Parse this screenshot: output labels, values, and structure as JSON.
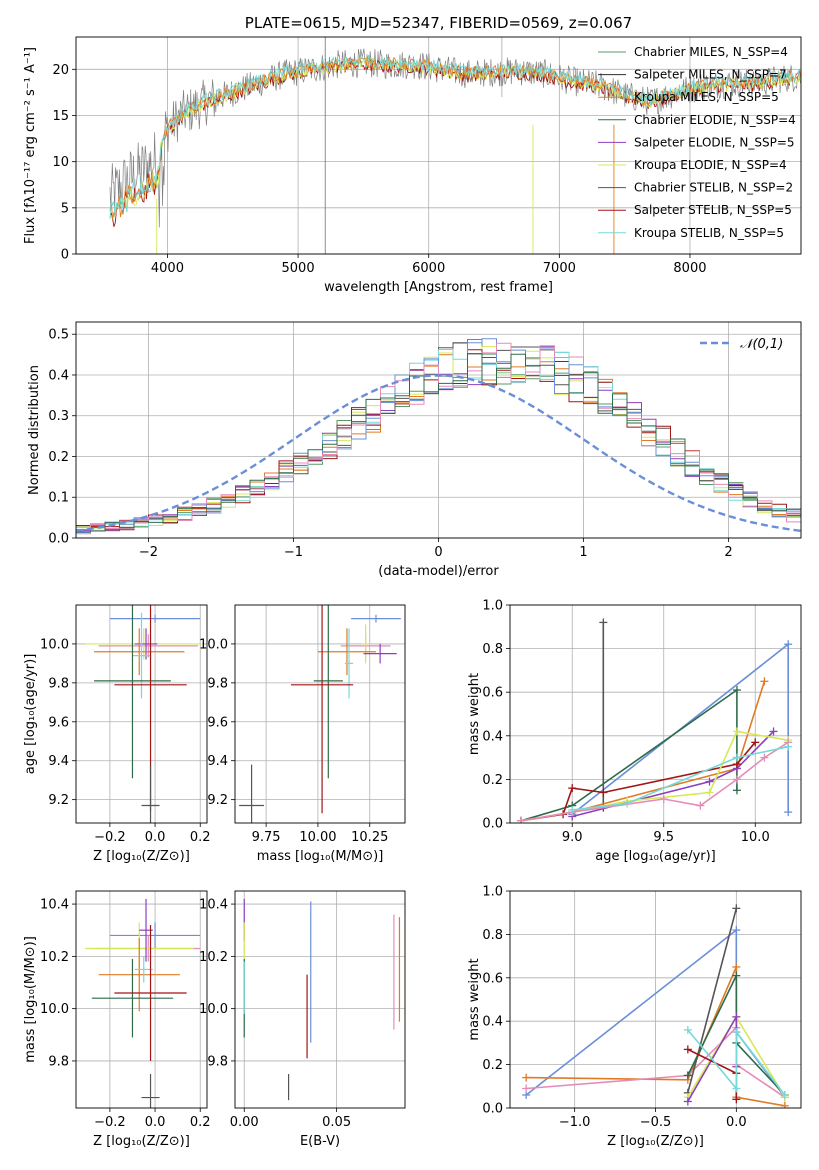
{
  "colors": {
    "grid": "#b0b0b0",
    "chabrier_miles": "#5a9a68",
    "salpeter_miles": "#2b2b2b",
    "kroupa_miles": "#e07b25",
    "chabrier_elodie": "#2f6b4a",
    "salpeter_elodie": "#8e3fbf",
    "kroupa_elodie": "#d6e85a",
    "chabrier_stelib": "#555555",
    "salpeter_stelib": "#a31515",
    "kroupa_stelib": "#77d8d8",
    "blue": "#6a8fd8",
    "pink": "#e58bb8"
  },
  "chart_data": [
    {
      "type": "line",
      "title": "PLATE=0615, MJD=52347, FIBERID=0569, z=0.067",
      "xlabel": "wavelength [Angstrom, rest frame]",
      "ylabel": "Flux [fλ10⁻¹⁷ erg cm⁻² s⁻¹ A⁻¹]",
      "xlim": [
        3300,
        8850
      ],
      "ylim": [
        0,
        23.5
      ],
      "xticks": [
        "4000",
        "5000",
        "6000",
        "7000",
        "8000"
      ],
      "yticks": [
        "0",
        "5",
        "10",
        "15",
        "20"
      ],
      "legend_position": "top-right",
      "legend": [
        "Chabrier MILES, N_SSP=4",
        "Salpeter MILES, N_SSP=7",
        "Kroupa MILES, N_SSP=5",
        "Chabrier ELODIE, N_SSP=4",
        "Salpeter ELODIE, N_SSP=5",
        "Kroupa ELODIE, N_SSP=4",
        "Chabrier STELIB, N_SSP=2",
        "Salpeter STELIB, N_SSP=5",
        "Kroupa STELIB, N_SSP=5"
      ],
      "continuum": {
        "x": [
          3550,
          3700,
          3900,
          4000,
          4100,
          4300,
          4500,
          4700,
          4900,
          5100,
          5300,
          5500,
          5700,
          5900,
          6100,
          6300,
          6500,
          6700,
          6900,
          7100,
          7300,
          7500,
          7700,
          7900,
          8100,
          8300,
          8500,
          8700,
          8850
        ],
        "y": [
          6,
          8,
          10,
          13.5,
          15,
          16.5,
          17.5,
          18.5,
          19.5,
          20,
          20.5,
          20.7,
          20.5,
          20.5,
          20,
          19.5,
          19.7,
          19.8,
          19.5,
          18.7,
          18.3,
          17.2,
          16.5,
          17.5,
          18.2,
          18.5,
          18.5,
          19,
          19.2
        ]
      }
    },
    {
      "type": "histogram",
      "xlabel": "(data-model)/error",
      "ylabel": "Normed distribution",
      "xlim": [
        -2.5,
        2.5
      ],
      "ylim": [
        0,
        0.53
      ],
      "xticks": [
        "−2",
        "−1",
        "0",
        "1",
        "2"
      ],
      "yticks": [
        "0.0",
        "0.1",
        "0.2",
        "0.3",
        "0.4",
        "0.5"
      ],
      "legend_position": "top-right",
      "reference_label": "𝒩(0,1)",
      "bin_width": 0.1,
      "base": [
        0.02,
        0.023,
        0.026,
        0.031,
        0.036,
        0.042,
        0.05,
        0.059,
        0.069,
        0.08,
        0.093,
        0.107,
        0.123,
        0.141,
        0.16,
        0.181,
        0.203,
        0.227,
        0.252,
        0.277,
        0.303,
        0.328,
        0.352,
        0.374,
        0.394,
        0.411,
        0.424,
        0.433,
        0.438,
        0.44,
        0.437,
        0.431,
        0.42,
        0.406,
        0.388,
        0.367,
        0.344,
        0.318,
        0.291,
        0.264,
        0.236,
        0.209,
        0.183,
        0.158,
        0.135,
        0.114,
        0.096,
        0.08,
        0.066,
        0.055
      ]
    },
    {
      "type": "scatter",
      "xlabel": "Z [log₁₀(Z/Z⊙)]",
      "ylabel": "age  [log₁₀(age/yr)]",
      "xlim": [
        -0.35,
        0.23
      ],
      "ylim": [
        9.08,
        10.2
      ],
      "xticks": [
        "−0.2",
        "0.0",
        "0.2"
      ],
      "yticks": [
        "9.2",
        "9.4",
        "9.6",
        "9.8",
        "10.0"
      ],
      "points": [
        {
          "x": 0.0,
          "y": 10.13,
          "xerr": 0.2,
          "yerr": 0.02,
          "color": "blue"
        },
        {
          "x": -0.03,
          "y": 9.99,
          "xerr": 0.22,
          "yerr": 0.06,
          "color": "pink"
        },
        {
          "x": -0.05,
          "y": 10.0,
          "xerr": 0.26,
          "yerr": 0.08,
          "color": "kroupa_elodie"
        },
        {
          "x": -0.04,
          "y": 10.0,
          "xerr": 0.05,
          "yerr": 0.08,
          "color": "salpeter_elodie"
        },
        {
          "x": -0.07,
          "y": 9.96,
          "xerr": 0.2,
          "yerr": 0.12,
          "color": "kroupa_miles"
        },
        {
          "x": -0.06,
          "y": 9.94,
          "xerr": 0.04,
          "yerr": 0.22,
          "color": "kroupa_stelib"
        },
        {
          "x": -0.1,
          "y": 9.81,
          "xerr": 0.17,
          "yerr": 0.5,
          "color": "chabrier_elodie"
        },
        {
          "x": -0.02,
          "y": 9.79,
          "xerr": 0.16,
          "yerr": 0.65,
          "color": "salpeter_stelib"
        },
        {
          "x": -0.02,
          "y": 9.17,
          "xerr": 0.04,
          "yerr": 0.21,
          "color": "chabrier_stelib"
        }
      ]
    },
    {
      "type": "scatter",
      "xlabel": "mass [log₁₀(M/M⊙)]",
      "ylabel": "",
      "xlim": [
        9.6,
        10.42
      ],
      "ylim": [
        9.08,
        10.2
      ],
      "xticks": [
        "9.75",
        "10.00",
        "10.25"
      ],
      "yticks": [
        "9.2",
        "9.4",
        "9.6",
        "9.8",
        "10.0"
      ],
      "points": [
        {
          "x": 10.28,
          "y": 10.13,
          "xerr": 0.12,
          "yerr": 0.02,
          "color": "blue"
        },
        {
          "x": 10.23,
          "y": 9.99,
          "xerr": 0.12,
          "yerr": 0.06,
          "color": "pink"
        },
        {
          "x": 10.23,
          "y": 10.0,
          "xerr": 0.02,
          "yerr": 0.1,
          "color": "kroupa_elodie"
        },
        {
          "x": 10.3,
          "y": 9.95,
          "xerr": 0.08,
          "yerr": 0.05,
          "color": "salpeter_elodie"
        },
        {
          "x": 10.14,
          "y": 9.96,
          "xerr": 0.14,
          "yerr": 0.12,
          "color": "kroupa_miles"
        },
        {
          "x": 10.15,
          "y": 9.9,
          "xerr": 0.02,
          "yerr": 0.18,
          "color": "kroupa_stelib"
        },
        {
          "x": 10.05,
          "y": 9.81,
          "xerr": 0.07,
          "yerr": 0.5,
          "color": "chabrier_elodie"
        },
        {
          "x": 10.02,
          "y": 9.79,
          "xerr": 0.15,
          "yerr": 0.66,
          "color": "salpeter_stelib"
        },
        {
          "x": 9.68,
          "y": 9.17,
          "xerr": 0.06,
          "yerr": 0.21,
          "color": "chabrier_stelib"
        }
      ]
    },
    {
      "type": "line",
      "xlabel": "age  [log₁₀(age/yr)]",
      "ylabel": "mass weight",
      "xlim": [
        8.66,
        10.25
      ],
      "ylim": [
        0,
        1
      ],
      "xticks": [
        "9.0",
        "9.5",
        "10.0"
      ],
      "yticks": [
        "0.0",
        "0.2",
        "0.4",
        "0.6",
        "0.8",
        "1.0"
      ],
      "series": [
        {
          "color": "chabrier_stelib",
          "x": [
            9.17,
            9.17
          ],
          "y": [
            0.07,
            0.92
          ]
        },
        {
          "color": "blue",
          "x": [
            9.0,
            10.18,
            10.18
          ],
          "y": [
            0.04,
            0.82,
            0.05
          ]
        },
        {
          "color": "chabrier_elodie",
          "x": [
            8.72,
            9.0,
            9.9,
            9.9,
            9.9
          ],
          "y": [
            0.01,
            0.08,
            0.61,
            0.3,
            0.15
          ]
        },
        {
          "color": "kroupa_miles",
          "x": [
            9.0,
            9.9,
            10.05
          ],
          "y": [
            0.05,
            0.25,
            0.65
          ]
        },
        {
          "color": "salpeter_elodie",
          "x": [
            9.0,
            9.75,
            9.9,
            10.1
          ],
          "y": [
            0.03,
            0.19,
            0.25,
            0.42
          ]
        },
        {
          "color": "salpeter_stelib",
          "x": [
            8.72,
            8.95,
            9.0,
            9.17,
            9.9,
            10.0
          ],
          "y": [
            0.01,
            0.04,
            0.16,
            0.14,
            0.27,
            0.37
          ]
        },
        {
          "color": "kroupa_elodie",
          "x": [
            8.72,
            9.0,
            9.3,
            9.75,
            9.9,
            10.18
          ],
          "y": [
            0.01,
            0.05,
            0.1,
            0.14,
            0.42,
            0.38
          ]
        },
        {
          "color": "pink",
          "x": [
            8.72,
            9.0,
            9.5,
            9.7,
            9.9,
            10.05,
            10.18
          ],
          "y": [
            0.01,
            0.05,
            0.11,
            0.08,
            0.2,
            0.3,
            0.37
          ]
        },
        {
          "color": "kroupa_stelib",
          "x": [
            9.0,
            9.3,
            9.9,
            10.18
          ],
          "y": [
            0.06,
            0.09,
            0.3,
            0.35
          ]
        }
      ]
    },
    {
      "type": "scatter",
      "xlabel": "Z [log₁₀(Z/Z⊙)]",
      "ylabel": "mass [log₁₀(M/M⊙)]",
      "xlim": [
        -0.35,
        0.23
      ],
      "ylim": [
        9.62,
        10.45
      ],
      "xticks": [
        "−0.2",
        "0.0",
        "0.2"
      ],
      "yticks": [
        "9.8",
        "10.0",
        "10.2",
        "10.4"
      ],
      "points": [
        {
          "x": 0.0,
          "y": 10.28,
          "xerr": 0.2,
          "yerr": 0.05,
          "color": "blue"
        },
        {
          "x": -0.03,
          "y": 10.23,
          "xerr": 0.23,
          "yerr": 0.05,
          "color": "pink"
        },
        {
          "x": -0.07,
          "y": 10.23,
          "xerr": 0.24,
          "yerr": 0.1,
          "color": "kroupa_elodie"
        },
        {
          "x": -0.04,
          "y": 10.3,
          "xerr": 0.03,
          "yerr": 0.12,
          "color": "salpeter_elodie"
        },
        {
          "x": -0.07,
          "y": 10.13,
          "xerr": 0.18,
          "yerr": 0.14,
          "color": "kroupa_miles"
        },
        {
          "x": -0.05,
          "y": 10.15,
          "xerr": 0.04,
          "yerr": 0.05,
          "color": "kroupa_stelib"
        },
        {
          "x": -0.1,
          "y": 10.04,
          "xerr": 0.18,
          "yerr": 0.15,
          "color": "chabrier_elodie"
        },
        {
          "x": -0.02,
          "y": 10.06,
          "xerr": 0.16,
          "yerr": 0.26,
          "color": "salpeter_stelib"
        },
        {
          "x": -0.02,
          "y": 9.66,
          "xerr": 0.04,
          "yerr": 0.09,
          "color": "chabrier_stelib"
        }
      ]
    },
    {
      "type": "scatter",
      "xlabel": "E(B-V)",
      "ylabel": "",
      "xlim": [
        -0.005,
        0.087
      ],
      "ylim": [
        9.62,
        10.45
      ],
      "xticks": [
        "0.00",
        "0.05"
      ],
      "yticks": [
        "9.8",
        "10.0",
        "10.2",
        "10.4"
      ],
      "points": [
        {
          "x": 0.0,
          "y": 10.34,
          "xerr": 0,
          "yerr": 0.08,
          "color": "salpeter_elodie"
        },
        {
          "x": 0.0,
          "y": 10.22,
          "xerr": 0,
          "yerr": 0.11,
          "color": "kroupa_elodie"
        },
        {
          "x": 0.0,
          "y": 10.04,
          "xerr": 0,
          "yerr": 0.15,
          "color": "chabrier_elodie"
        },
        {
          "x": 0.0,
          "y": 10.08,
          "xerr": 0,
          "yerr": 0.1,
          "color": "kroupa_stelib"
        },
        {
          "x": 0.036,
          "y": 10.14,
          "xerr": 0,
          "yerr": 0.27,
          "color": "blue"
        },
        {
          "x": 0.034,
          "y": 9.97,
          "xerr": 0,
          "yerr": 0.16,
          "color": "salpeter_stelib"
        },
        {
          "x": 0.024,
          "y": 9.7,
          "xerr": 0,
          "yerr": 0.05,
          "color": "chabrier_stelib"
        },
        {
          "x": 0.084,
          "y": 10.15,
          "xerr": 0,
          "yerr": 0.2,
          "color": "kroupa_miles"
        },
        {
          "x": 0.081,
          "y": 10.14,
          "xerr": 0,
          "yerr": 0.22,
          "color": "pink"
        }
      ]
    },
    {
      "type": "line",
      "xlabel": "Z [log₁₀(Z/Z⊙)]",
      "ylabel": "mass weight",
      "xlim": [
        -1.4,
        0.4
      ],
      "ylim": [
        0,
        1
      ],
      "xticks": [
        "−1.0",
        "−0.5",
        "0.0"
      ],
      "yticks": [
        "0.0",
        "0.2",
        "0.4",
        "0.6",
        "0.8",
        "1.0"
      ],
      "series": [
        {
          "color": "blue",
          "x": [
            -1.3,
            0.0,
            0.0,
            0.3
          ],
          "y": [
            0.06,
            0.82,
            0.35,
            0.05
          ]
        },
        {
          "color": "kroupa_miles",
          "x": [
            -1.3,
            -0.3,
            0.0,
            0.0,
            0.3
          ],
          "y": [
            0.14,
            0.13,
            0.65,
            0.05,
            0.01
          ]
        },
        {
          "color": "pink",
          "x": [
            -1.3,
            -0.3,
            0.0,
            0.0,
            0.3
          ],
          "y": [
            0.09,
            0.15,
            0.37,
            0.2,
            0.05
          ]
        },
        {
          "color": "chabrier_stelib",
          "x": [
            -0.3,
            0.0
          ],
          "y": [
            0.07,
            0.92
          ]
        },
        {
          "color": "chabrier_elodie",
          "x": [
            -0.3,
            0.0,
            0.0,
            0.3
          ],
          "y": [
            0.15,
            0.61,
            0.3,
            0.06
          ]
        },
        {
          "color": "kroupa_elodie",
          "x": [
            -0.3,
            0.0,
            0.3
          ],
          "y": [
            0.05,
            0.42,
            0.05
          ]
        },
        {
          "color": "salpeter_elodie",
          "x": [
            -0.3,
            0.0,
            0.0
          ],
          "y": [
            0.03,
            0.42,
            0.19
          ]
        },
        {
          "color": "salpeter_stelib",
          "x": [
            -0.3,
            0.0,
            0.0
          ],
          "y": [
            0.27,
            0.16,
            0.04
          ]
        },
        {
          "color": "kroupa_stelib",
          "x": [
            -0.3,
            0.0,
            0.0,
            0.3
          ],
          "y": [
            0.36,
            0.09,
            0.35,
            0.06
          ]
        }
      ]
    }
  ]
}
